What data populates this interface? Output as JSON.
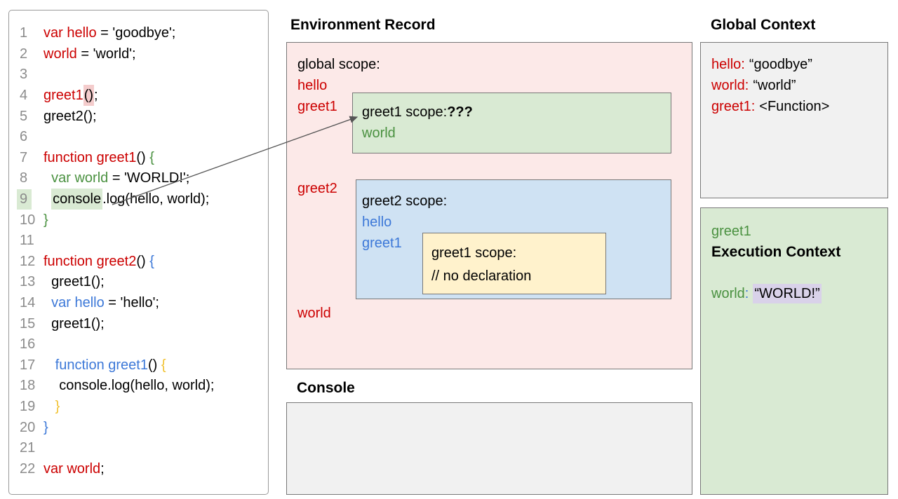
{
  "titles": {
    "environment_record": "Environment Record",
    "console": "Console",
    "global_context": "Global Context"
  },
  "code": {
    "lines": [
      {
        "n": "1",
        "t": [
          {
            "x": "var hello",
            "c": "red"
          },
          {
            "x": " = 'goodbye';",
            "c": "k"
          }
        ]
      },
      {
        "n": "2",
        "t": [
          {
            "x": "world",
            "c": "red"
          },
          {
            "x": " = 'world';",
            "c": "k"
          }
        ]
      },
      {
        "n": "3",
        "t": []
      },
      {
        "n": "4",
        "t": [
          {
            "x": "greet1",
            "c": "red"
          },
          {
            "x": "()",
            "c": "k",
            "h": "pink"
          },
          {
            "x": ";",
            "c": "k"
          }
        ]
      },
      {
        "n": "5",
        "t": [
          {
            "x": "greet2();",
            "c": "k"
          }
        ]
      },
      {
        "n": "6",
        "t": []
      },
      {
        "n": "7",
        "t": [
          {
            "x": "function greet1",
            "c": "red"
          },
          {
            "x": "() ",
            "c": "k"
          },
          {
            "x": "{",
            "c": "green"
          }
        ]
      },
      {
        "n": "8",
        "t": [
          {
            "x": "  ",
            "c": "k"
          },
          {
            "x": "var world",
            "c": "green"
          },
          {
            "x": " = 'WORLD!';",
            "c": "k"
          }
        ]
      },
      {
        "n": "9",
        "hl": true,
        "t": [
          {
            "x": "  ",
            "c": "k"
          },
          {
            "x": "console",
            "c": "k",
            "h": "green"
          },
          {
            "x": ".log(hello, world);",
            "c": "k"
          }
        ]
      },
      {
        "n": "10",
        "t": [
          {
            "x": "}",
            "c": "green"
          }
        ]
      },
      {
        "n": "11",
        "t": []
      },
      {
        "n": "12",
        "t": [
          {
            "x": "function greet2",
            "c": "red"
          },
          {
            "x": "() ",
            "c": "k"
          },
          {
            "x": "{",
            "c": "blue"
          }
        ]
      },
      {
        "n": "13",
        "t": [
          {
            "x": "  greet1();",
            "c": "k"
          }
        ]
      },
      {
        "n": "14",
        "t": [
          {
            "x": "  ",
            "c": "k"
          },
          {
            "x": "var hello",
            "c": "blue"
          },
          {
            "x": " = 'hello';",
            "c": "k"
          }
        ]
      },
      {
        "n": "15",
        "t": [
          {
            "x": "  greet1();",
            "c": "k"
          }
        ]
      },
      {
        "n": "16",
        "t": []
      },
      {
        "n": "17",
        "t": [
          {
            "x": "   ",
            "c": "k"
          },
          {
            "x": "function greet1",
            "c": "blue"
          },
          {
            "x": "() ",
            "c": "k"
          },
          {
            "x": "{",
            "c": "yellow"
          }
        ]
      },
      {
        "n": "18",
        "t": [
          {
            "x": "    console.log(hello, world);",
            "c": "k"
          }
        ]
      },
      {
        "n": "19",
        "t": [
          {
            "x": "   ",
            "c": "k"
          },
          {
            "x": "}",
            "c": "yellow"
          }
        ]
      },
      {
        "n": "20",
        "t": [
          {
            "x": "}",
            "c": "blue"
          }
        ]
      },
      {
        "n": "21",
        "t": []
      },
      {
        "n": "22",
        "t": [
          {
            "x": "var world",
            "c": "red"
          },
          {
            "x": ";",
            "c": "k"
          }
        ]
      }
    ]
  },
  "env": {
    "global_scope_label": "global scope:",
    "hello": "hello",
    "greet1": "greet1",
    "greet2": "greet2",
    "world": "world",
    "greet1_scope": {
      "label": "greet1 scope:",
      "question": "???",
      "var_world": "world"
    },
    "greet2_scope": {
      "label": "greet2 scope:",
      "var_hello": "hello",
      "var_greet1": "greet1",
      "greet1_scope": {
        "label": "greet1 scope:",
        "comment": "// no declaration"
      }
    }
  },
  "console": {
    "content": ""
  },
  "global_context": {
    "rows": [
      {
        "name": "hello:",
        "value": "“goodbye”"
      },
      {
        "name": "world:",
        "value": "“world”"
      },
      {
        "name": "greet1:",
        "value": "<Function>"
      }
    ]
  },
  "exec_context": {
    "function_name": "greet1",
    "heading": "Execution Context",
    "var_name": "world",
    "colon": ":",
    "value": "“WORLD!”"
  },
  "annotations": {
    "arrow": {
      "from": "code-line-9-console",
      "to": "greet1-scope-box"
    }
  },
  "colors": {
    "red_text": "#cc0000",
    "green_text": "#4a9140",
    "blue_text": "#3c78d8",
    "yellow_text": "#f1c232",
    "pink_fill": "#fce9e8",
    "green_fill": "#d9ead3",
    "blue_fill": "#cfe2f3",
    "yellow_fill": "#fff2cc",
    "gray_fill": "#f1f1f1",
    "lavender_highlight": "#d9d2e9",
    "pink_highlight": "#f4cccc"
  }
}
